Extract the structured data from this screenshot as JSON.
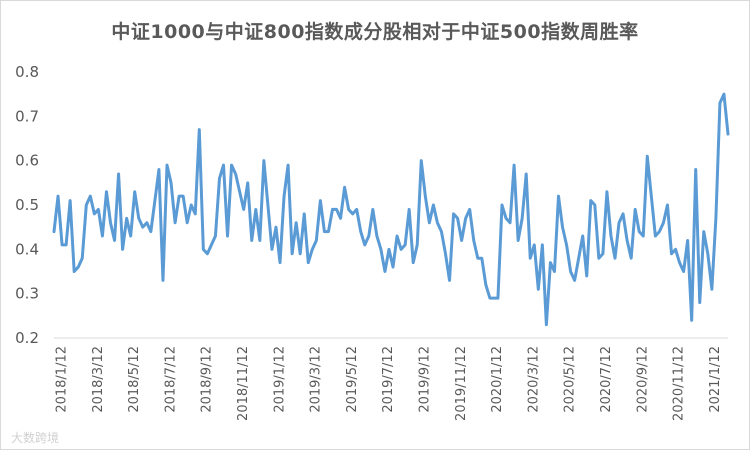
{
  "chart_data": {
    "type": "line",
    "title": "中证1000与中证800指数成分股相对于中证500指数周胜率",
    "xlabel": "",
    "ylabel": "",
    "ylim": [
      0.2,
      0.8
    ],
    "yticks": [
      "0.2",
      "0.3",
      "0.4",
      "0.5",
      "0.6",
      "0.7",
      "0.8"
    ],
    "grid": false,
    "legend": "none",
    "color": "#5b9bd5",
    "xtick_labels": [
      "2018/1/12",
      "2018/3/12",
      "2018/5/12",
      "2018/7/12",
      "2018/9/12",
      "2018/11/12",
      "2019/1/12",
      "2019/3/12",
      "2019/5/12",
      "2019/7/12",
      "2019/9/12",
      "2019/11/12",
      "2020/1/12",
      "2020/3/12",
      "2020/5/12",
      "2020/7/12",
      "2020/9/12",
      "2020/11/12",
      "2021/1/12"
    ],
    "series": [
      {
        "values": [
          0.44,
          0.52,
          0.41,
          0.41,
          0.51,
          0.35,
          0.36,
          0.38,
          0.5,
          0.52,
          0.48,
          0.49,
          0.43,
          0.53,
          0.46,
          0.42,
          0.57,
          0.4,
          0.47,
          0.43,
          0.53,
          0.47,
          0.45,
          0.46,
          0.44,
          0.51,
          0.58,
          0.33,
          0.59,
          0.55,
          0.46,
          0.52,
          0.52,
          0.46,
          0.5,
          0.48,
          0.67,
          0.4,
          0.39,
          0.41,
          0.43,
          0.56,
          0.59,
          0.43,
          0.59,
          0.57,
          0.53,
          0.49,
          0.55,
          0.42,
          0.49,
          0.42,
          0.6,
          0.5,
          0.4,
          0.45,
          0.37,
          0.52,
          0.59,
          0.39,
          0.46,
          0.39,
          0.48,
          0.37,
          0.4,
          0.42,
          0.51,
          0.44,
          0.44,
          0.49,
          0.49,
          0.47,
          0.54,
          0.49,
          0.48,
          0.49,
          0.44,
          0.41,
          0.43,
          0.49,
          0.43,
          0.4,
          0.35,
          0.4,
          0.36,
          0.43,
          0.4,
          0.41,
          0.49,
          0.37,
          0.41,
          0.6,
          0.52,
          0.46,
          0.5,
          0.46,
          0.44,
          0.39,
          0.33,
          0.48,
          0.47,
          0.42,
          0.47,
          0.49,
          0.42,
          0.38,
          0.38,
          0.32,
          0.29,
          0.29,
          0.29,
          0.5,
          0.47,
          0.46,
          0.59,
          0.42,
          0.47,
          0.57,
          0.38,
          0.41,
          0.31,
          0.41,
          0.23,
          0.37,
          0.35,
          0.52,
          0.45,
          0.41,
          0.35,
          0.33,
          0.38,
          0.43,
          0.34,
          0.51,
          0.5,
          0.38,
          0.39,
          0.53,
          0.43,
          0.38,
          0.46,
          0.48,
          0.42,
          0.38,
          0.49,
          0.44,
          0.43,
          0.61,
          0.52,
          0.43,
          0.44,
          0.46,
          0.5,
          0.39,
          0.4,
          0.37,
          0.35,
          0.42,
          0.24,
          0.58,
          0.28,
          0.44,
          0.39,
          0.31,
          0.47,
          0.73,
          0.75,
          0.66
        ]
      }
    ]
  },
  "watermark": "大数跨境"
}
